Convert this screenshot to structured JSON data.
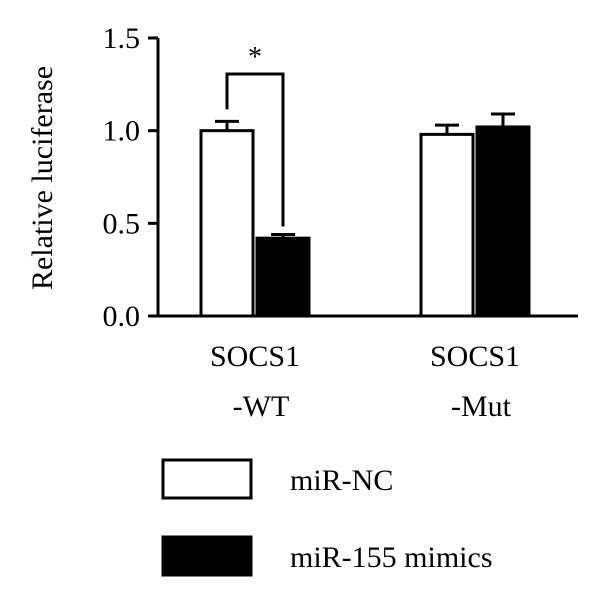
{
  "chart_data": {
    "type": "bar",
    "title": "",
    "xlabel": "",
    "ylabel": "Relative luciferase",
    "ylim": [
      0,
      1.5
    ],
    "yticks": [
      "0.0",
      "0.5",
      "1.0",
      "1.5"
    ],
    "categories": [
      {
        "line1": "SOCS1",
        "line2": "-WT"
      },
      {
        "line1": "SOCS1",
        "line2": "-Mut"
      }
    ],
    "series": [
      {
        "name": "miR-NC",
        "color": "#ffffff",
        "values": [
          1.0,
          0.98
        ],
        "errors": [
          0.05,
          0.05
        ]
      },
      {
        "name": "miR-155 mimics",
        "color": "#000000",
        "values": [
          0.42,
          1.02
        ],
        "errors": [
          0.02,
          0.07
        ]
      }
    ],
    "annotations": [
      {
        "category_index": 0,
        "text": "*"
      }
    ],
    "legend": "bottom",
    "grid": false
  }
}
